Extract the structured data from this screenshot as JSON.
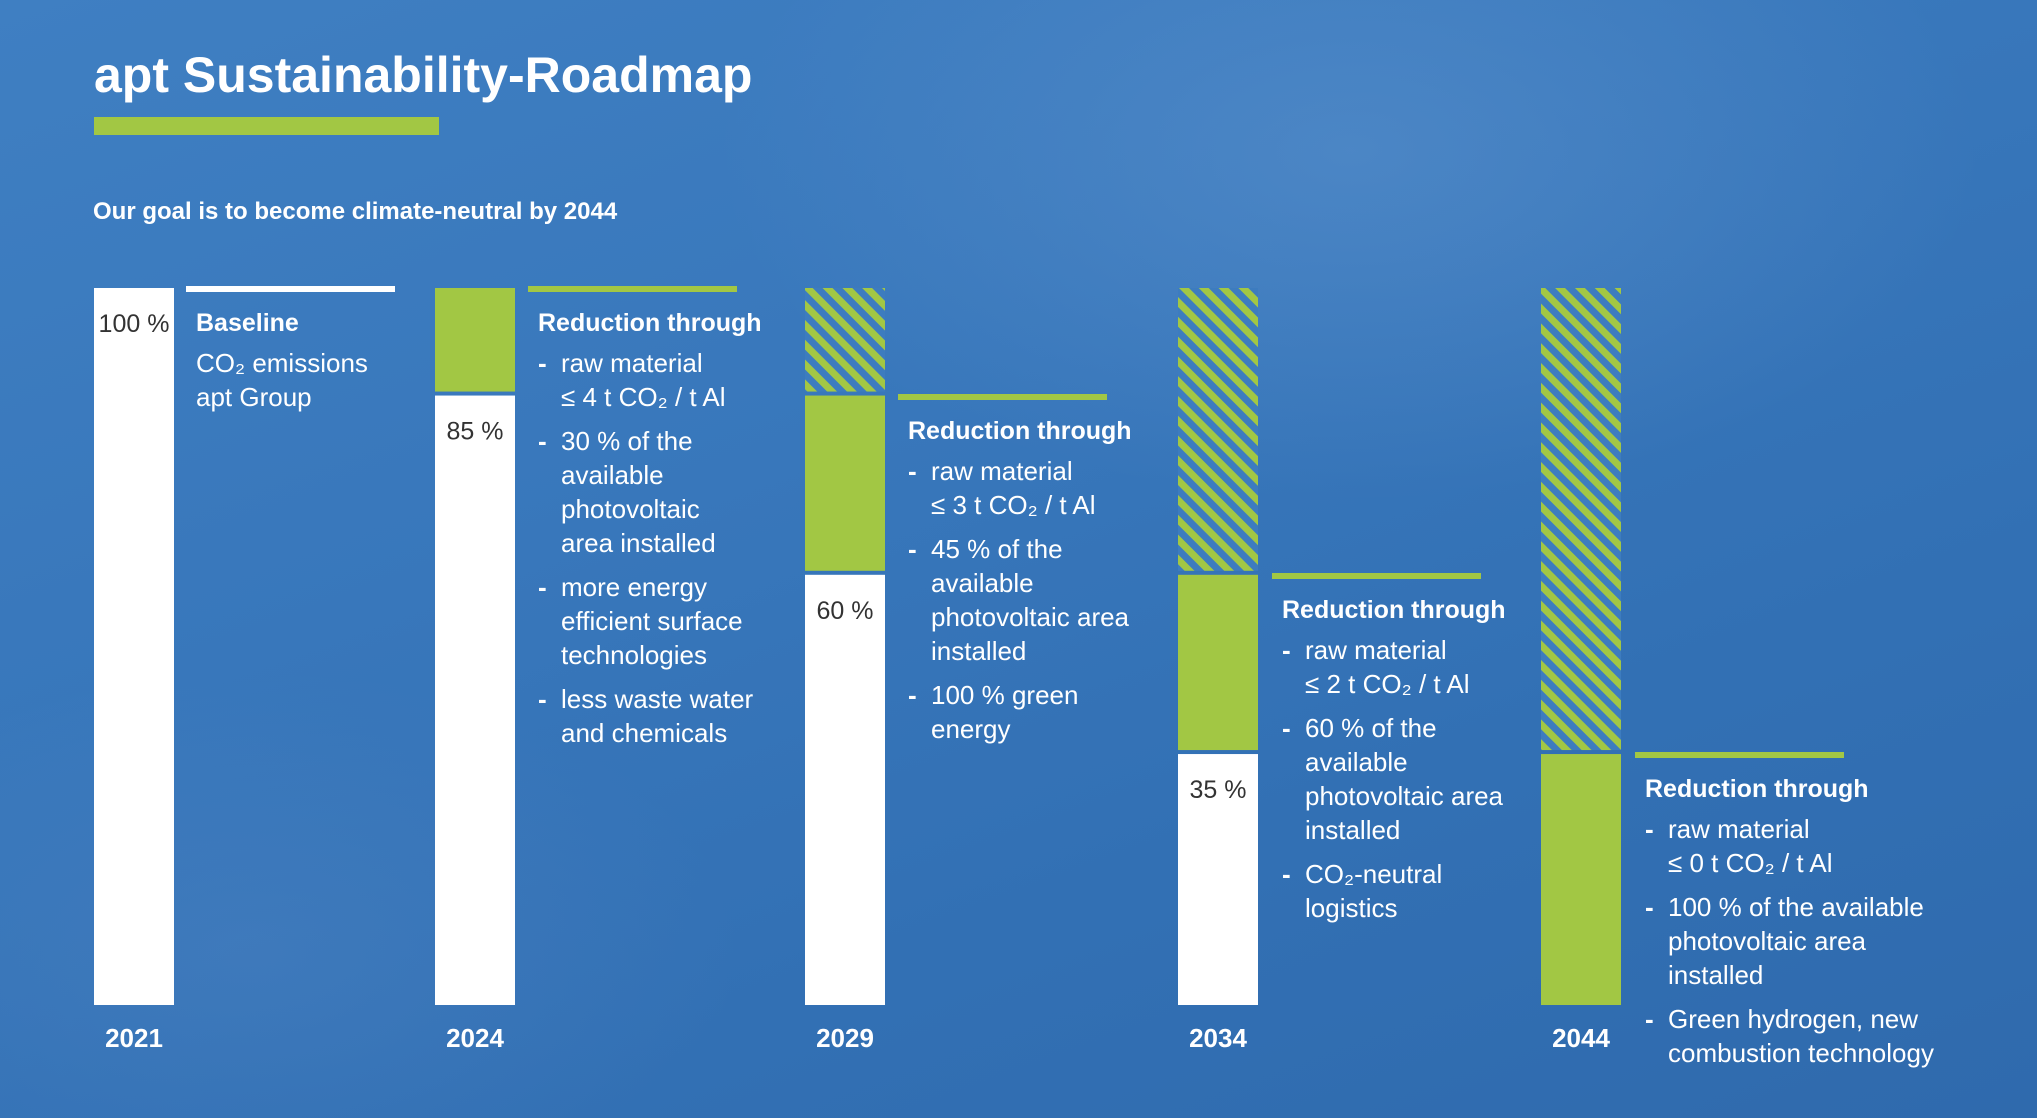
{
  "header": {
    "title": "apt Sustainability-Roadmap",
    "subtitle": "Our goal is to become climate-neutral by 2044"
  },
  "colors": {
    "background": "#3877bb",
    "accent_green": "#a2c744",
    "remaining": "#ffffff",
    "reduced_hatch": "#a2c744"
  },
  "chart_data": {
    "type": "bar",
    "categories": [
      "2021",
      "2024",
      "2029",
      "2034",
      "2044"
    ],
    "ylim": [
      0,
      100
    ],
    "grid": false,
    "series": [
      {
        "values": [
          100,
          85,
          60,
          35,
          0
        ]
      },
      {
        "values": [
          0,
          15,
          25,
          25,
          35
        ]
      },
      {
        "values": [
          0,
          0,
          15,
          40,
          65
        ]
      }
    ],
    "labels": [
      "100 %",
      "85 %",
      "60 %",
      "35 %",
      ""
    ]
  },
  "notes": [
    {
      "head": "Baseline",
      "body": "CO₂ emissions\napt Group",
      "items": []
    },
    {
      "head": "Reduction through",
      "body": "",
      "items": [
        "raw material\n≤ 4 t CO₂ / t Al",
        "30 % of the\navailable\nphotovoltaic\narea installed",
        "more energy\nefficient surface\ntechnologies",
        "less waste water\nand chemicals"
      ]
    },
    {
      "head": "Reduction through",
      "body": "",
      "items": [
        "raw material\n≤ 3 t CO₂ / t Al",
        "45 % of the\navailable\nphotovoltaic area\ninstalled",
        "100 % green\nenergy"
      ]
    },
    {
      "head": "Reduction through",
      "body": "",
      "items": [
        "raw material\n≤ 2 t CO₂ / t Al",
        "60 % of the\navailable\nphotovoltaic area\ninstalled",
        "CO₂-neutral\nlogistics"
      ]
    },
    {
      "head": "Reduction through",
      "body": "",
      "items": [
        "raw material\n≤ 0 t CO₂ / t Al",
        "100 % of the available\nphotovoltaic area\ninstalled",
        "Green hydrogen, new\ncombustion technology"
      ]
    }
  ]
}
